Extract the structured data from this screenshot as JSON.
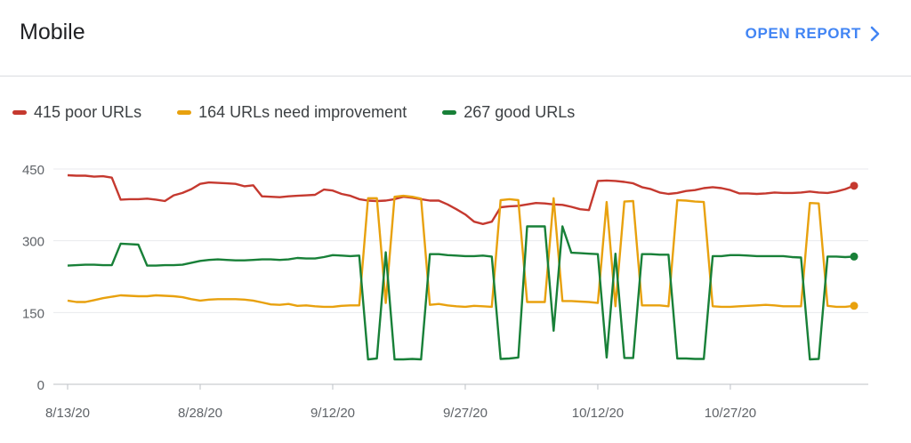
{
  "header": {
    "title": "Mobile",
    "open_report_label": "OPEN REPORT",
    "open_report_icon": "chevron-right-icon",
    "accent_color": "#4285f4"
  },
  "legend": {
    "items": [
      {
        "label": "415 poor URLs",
        "color": "#c5392f"
      },
      {
        "label": "164 URLs need improvement",
        "color": "#e8a10e"
      },
      {
        "label": "267 good URLs",
        "color": "#188038"
      }
    ]
  },
  "chart_data": {
    "type": "line",
    "title": "",
    "xlabel": "",
    "ylabel": "",
    "ylim": [
      0,
      450
    ],
    "yticks": [
      0,
      150,
      300,
      450
    ],
    "x_tick_labels": [
      "8/13/20",
      "8/28/20",
      "9/12/20",
      "9/27/20",
      "10/12/20",
      "10/27/20"
    ],
    "x_tick_days": [
      0,
      15,
      30,
      45,
      60,
      75
    ],
    "x_range_days": [
      0,
      89
    ],
    "grid": true,
    "legend_position": "top-left",
    "series": [
      {
        "name": "415 poor URLs",
        "color": "#c5392f",
        "values": [
          437,
          436,
          436,
          434,
          435,
          432,
          386,
          387,
          387,
          388,
          386,
          383,
          395,
          400,
          408,
          419,
          422,
          421,
          420,
          419,
          414,
          416,
          393,
          392,
          391,
          393,
          394,
          395,
          396,
          407,
          405,
          398,
          394,
          387,
          384,
          383,
          384,
          387,
          392,
          390,
          387,
          384,
          384,
          376,
          366,
          355,
          340,
          335,
          340,
          370,
          372,
          373,
          376,
          379,
          378,
          376,
          375,
          371,
          366,
          364,
          425,
          426,
          425,
          423,
          420,
          412,
          408,
          401,
          398,
          400,
          404,
          406,
          410,
          412,
          410,
          406,
          399,
          399,
          398,
          399,
          401,
          400,
          400,
          401,
          403,
          401,
          400,
          403,
          408,
          415
        ]
      },
      {
        "name": "164 URLs need improvement",
        "color": "#e8a10e",
        "values": [
          175,
          172,
          172,
          176,
          180,
          183,
          186,
          185,
          184,
          184,
          186,
          185,
          184,
          182,
          178,
          175,
          177,
          178,
          178,
          178,
          177,
          175,
          171,
          167,
          166,
          168,
          164,
          165,
          163,
          162,
          162,
          164,
          165,
          165,
          389,
          389,
          170,
          392,
          394,
          392,
          388,
          166,
          168,
          165,
          163,
          162,
          164,
          163,
          162,
          385,
          387,
          385,
          172,
          172,
          172,
          389,
          174,
          174,
          173,
          172,
          170,
          381,
          163,
          382,
          383,
          165,
          165,
          165,
          163,
          385,
          384,
          382,
          381,
          163,
          162,
          162,
          163,
          164,
          165,
          166,
          165,
          163,
          163,
          163,
          379,
          378,
          164,
          162,
          162,
          164
        ]
      },
      {
        "name": "267 good URLs",
        "color": "#188038",
        "values": [
          248,
          249,
          250,
          250,
          249,
          249,
          294,
          293,
          292,
          248,
          248,
          249,
          249,
          250,
          254,
          258,
          260,
          261,
          260,
          259,
          259,
          260,
          261,
          261,
          260,
          261,
          264,
          263,
          263,
          266,
          270,
          269,
          268,
          269,
          52,
          54,
          276,
          52,
          52,
          53,
          52,
          272,
          272,
          270,
          269,
          268,
          268,
          269,
          267,
          53,
          54,
          56,
          330,
          330,
          330,
          112,
          330,
          275,
          274,
          273,
          272,
          56,
          273,
          55,
          55,
          272,
          272,
          271,
          271,
          54,
          54,
          53,
          53,
          268,
          268,
          270,
          270,
          269,
          268,
          268,
          268,
          268,
          266,
          265,
          52,
          53,
          267,
          267,
          266,
          267
        ]
      }
    ]
  }
}
